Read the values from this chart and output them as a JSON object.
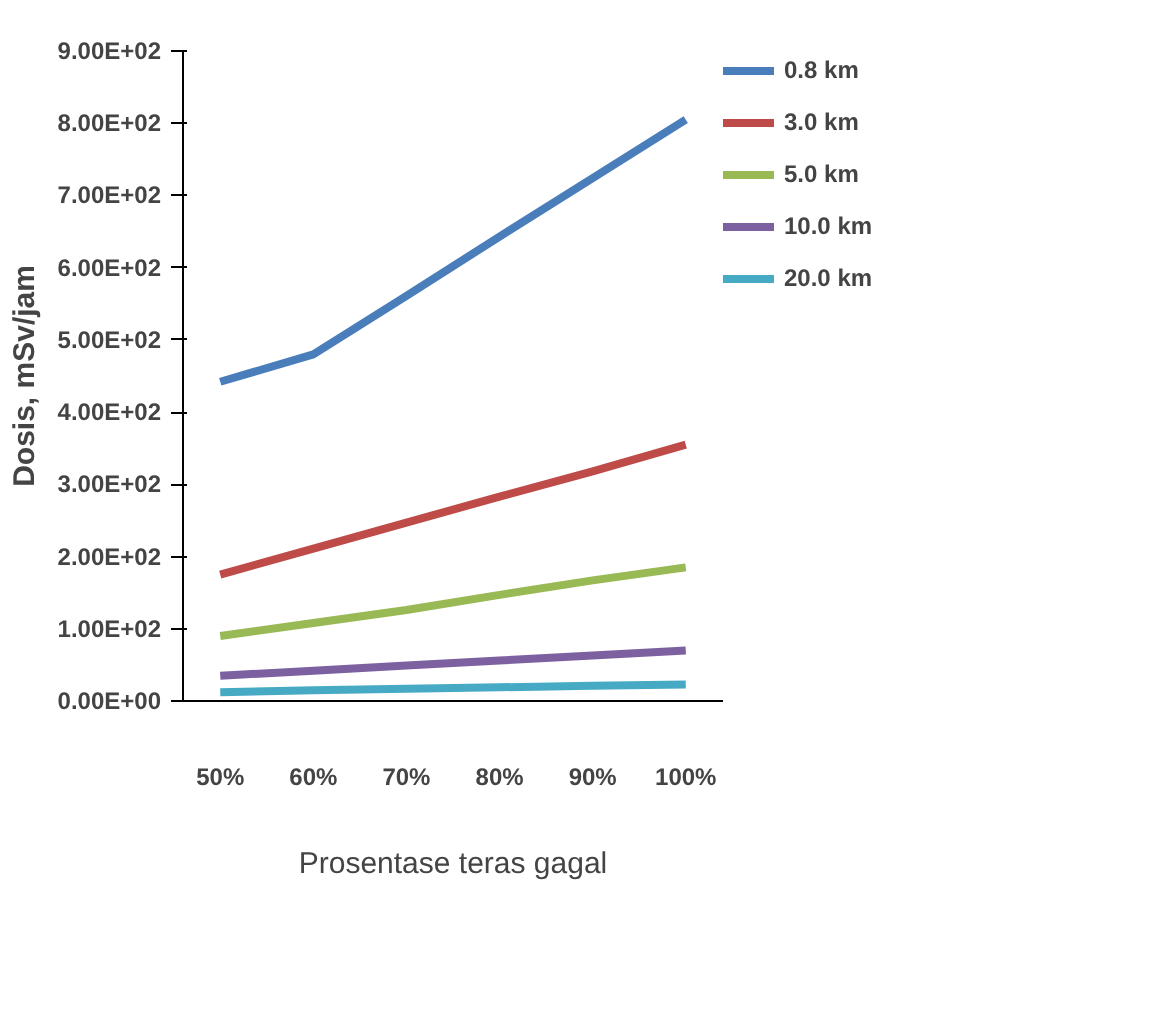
{
  "chart_data": {
    "type": "line",
    "xlabel": "Prosentase teras gagal",
    "ylabel": "Dosis, mSv/jam",
    "categories": [
      "50%",
      "60%",
      "70%",
      "80%",
      "90%",
      "100%"
    ],
    "series": [
      {
        "name": "0.8 km",
        "color": "#4a7ebb",
        "values": [
          442,
          480,
          561,
          643,
          724,
          805
        ]
      },
      {
        "name": "3.0 km",
        "color": "#be4b48",
        "values": [
          175,
          211,
          247,
          283,
          318,
          355
        ]
      },
      {
        "name": "5.0 km",
        "color": "#98b954",
        "values": [
          90,
          108,
          126,
          147,
          167,
          185
        ]
      },
      {
        "name": "10.0 km",
        "color": "#7d60a0",
        "values": [
          35,
          42,
          49,
          56,
          63,
          70
        ]
      },
      {
        "name": "20.0 km",
        "color": "#46aac5",
        "values": [
          12,
          15,
          17,
          19,
          21,
          23
        ]
      }
    ],
    "ylim": [
      0,
      900
    ],
    "yticks": [
      {
        "value": 0,
        "label": "0.00E+00"
      },
      {
        "value": 100,
        "label": "1.00E+02"
      },
      {
        "value": 200,
        "label": "2.00E+02"
      },
      {
        "value": 300,
        "label": "3.00E+02"
      },
      {
        "value": 400,
        "label": "4.00E+02"
      },
      {
        "value": 500,
        "label": "5.00E+02"
      },
      {
        "value": 600,
        "label": "6.00E+02"
      },
      {
        "value": 700,
        "label": "7.00E+02"
      },
      {
        "value": 800,
        "label": "8.00E+02"
      },
      {
        "value": 900,
        "label": "9.00E+02"
      }
    ],
    "grid": false,
    "legend": "right",
    "marker": "none",
    "line_style": "solid"
  }
}
